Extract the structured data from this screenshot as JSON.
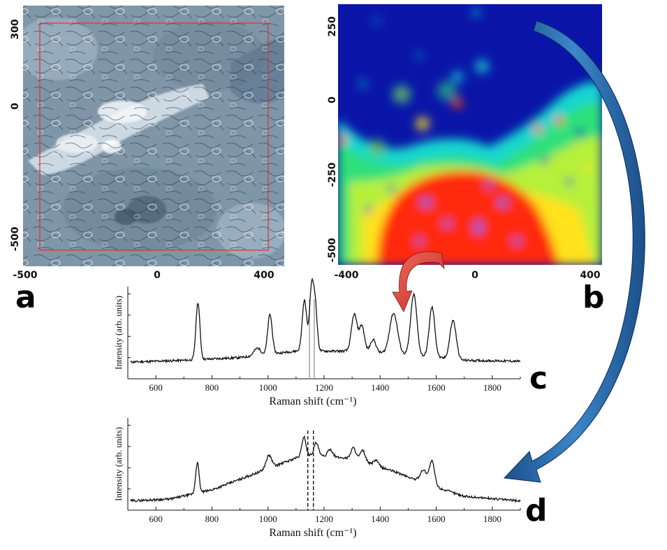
{
  "panels": {
    "a": {
      "letter": "a",
      "x_ticks": [
        "-500",
        "0",
        "400"
      ],
      "y_ticks": [
        "300",
        "0",
        "-500"
      ]
    },
    "b": {
      "letter": "b",
      "x_ticks": [
        "-400",
        "0",
        "400"
      ],
      "y_ticks": [
        "250",
        "0",
        "-250",
        "-500"
      ]
    },
    "c": {
      "letter": "c"
    },
    "d": {
      "letter": "d"
    }
  },
  "colors": {
    "roi_box": "#e03030",
    "map_background": "#0a15a8",
    "red_arrow": "#e83a2e",
    "blue_arrow": "#2f73b8",
    "spectrum_line": "#111111",
    "marker_line_c": "#9a9a9a",
    "marker_line_d": "#111111"
  },
  "chart_data": [
    {
      "type": "line",
      "panel": "c",
      "xlabel": "Raman shift (cm⁻¹)",
      "ylabel": "Intensity (arb. units)",
      "x_ticks": [
        600,
        800,
        1000,
        1200,
        1400,
        1600,
        1800
      ],
      "xlim": [
        500,
        1900
      ],
      "ylim": [
        0,
        1
      ],
      "baseline": [
        [
          500,
          0.18
        ],
        [
          700,
          0.2
        ],
        [
          900,
          0.23
        ],
        [
          1100,
          0.3
        ],
        [
          1300,
          0.3
        ],
        [
          1500,
          0.26
        ],
        [
          1700,
          0.2
        ],
        [
          1900,
          0.19
        ]
      ],
      "peaks": [
        {
          "x": 750,
          "h": 0.62,
          "w": 7
        },
        {
          "x": 962,
          "h": 0.08,
          "w": 12
        },
        {
          "x": 1007,
          "h": 0.43,
          "w": 8
        },
        {
          "x": 1130,
          "h": 0.55,
          "w": 8
        },
        {
          "x": 1155,
          "h": 0.65,
          "w": 7
        },
        {
          "x": 1168,
          "h": 0.5,
          "w": 7
        },
        {
          "x": 1308,
          "h": 0.4,
          "w": 10
        },
        {
          "x": 1335,
          "h": 0.28,
          "w": 9
        },
        {
          "x": 1375,
          "h": 0.14,
          "w": 10
        },
        {
          "x": 1448,
          "h": 0.44,
          "w": 14
        },
        {
          "x": 1520,
          "h": 0.66,
          "w": 11
        },
        {
          "x": 1585,
          "h": 0.54,
          "w": 10
        },
        {
          "x": 1660,
          "h": 0.42,
          "w": 11
        }
      ],
      "markers": [
        1148,
        1165
      ]
    },
    {
      "type": "line",
      "panel": "d",
      "xlabel": "Raman shift (cm⁻¹)",
      "ylabel": "Intensity (arb. units)",
      "x_ticks": [
        600,
        800,
        1000,
        1200,
        1400,
        1600,
        1800
      ],
      "xlim": [
        500,
        1900
      ],
      "ylim": [
        0,
        1
      ],
      "baseline": [
        [
          500,
          0.1
        ],
        [
          650,
          0.12
        ],
        [
          800,
          0.22
        ],
        [
          1000,
          0.45
        ],
        [
          1130,
          0.6
        ],
        [
          1300,
          0.56
        ],
        [
          1450,
          0.42
        ],
        [
          1550,
          0.3
        ],
        [
          1700,
          0.15
        ],
        [
          1900,
          0.1
        ]
      ],
      "peaks": [
        {
          "x": 748,
          "h": 0.33,
          "w": 6
        },
        {
          "x": 1003,
          "h": 0.14,
          "w": 10
        },
        {
          "x": 1128,
          "h": 0.2,
          "w": 7
        },
        {
          "x": 1172,
          "h": 0.14,
          "w": 8
        },
        {
          "x": 1222,
          "h": 0.08,
          "w": 9
        },
        {
          "x": 1305,
          "h": 0.12,
          "w": 9
        },
        {
          "x": 1338,
          "h": 0.12,
          "w": 9
        },
        {
          "x": 1385,
          "h": 0.06,
          "w": 9
        },
        {
          "x": 1555,
          "h": 0.14,
          "w": 12
        },
        {
          "x": 1585,
          "h": 0.26,
          "w": 9
        }
      ],
      "markers": [
        1142,
        1162
      ]
    }
  ]
}
